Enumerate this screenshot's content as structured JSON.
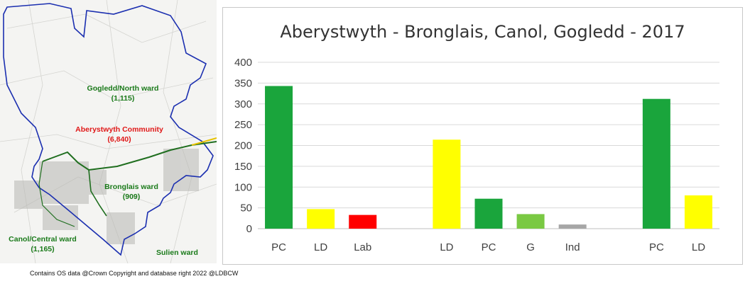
{
  "map": {
    "labels": {
      "gogledd": "Gogledd/North ward",
      "gogledd_count": "(1,115)",
      "community": "Aberystwyth Community",
      "community_count": "(6,840)",
      "bronglais": "Bronglais ward",
      "bronglais_count": "(909)",
      "canol": "Canol/Central ward",
      "canol_count": "(1,165)",
      "sulien": "Sulien ward"
    }
  },
  "caption": "Contains OS data @Crown Copyright  and database right 2022 @LDBCW",
  "chart_data": {
    "type": "bar",
    "title": "Aberystwyth - Bronglais, Canol, Gogledd - 2017",
    "xlabel": "",
    "ylabel": "",
    "ylim": [
      0,
      400
    ],
    "yticks": [
      0,
      50,
      100,
      150,
      200,
      250,
      300,
      350,
      400
    ],
    "grid": true,
    "categories": [
      "PC",
      "LD",
      "Lab",
      "",
      "LD",
      "PC",
      "G",
      "Ind",
      "",
      "PC",
      "LD"
    ],
    "values": [
      343,
      47,
      33,
      null,
      214,
      72,
      35,
      10,
      null,
      312,
      80
    ],
    "colors": [
      "#1aa53c",
      "#ffff00",
      "#ff0000",
      null,
      "#ffff00",
      "#1aa53c",
      "#7ac943",
      "#a6a6a6",
      null,
      "#1aa53c",
      "#ffff00"
    ]
  }
}
